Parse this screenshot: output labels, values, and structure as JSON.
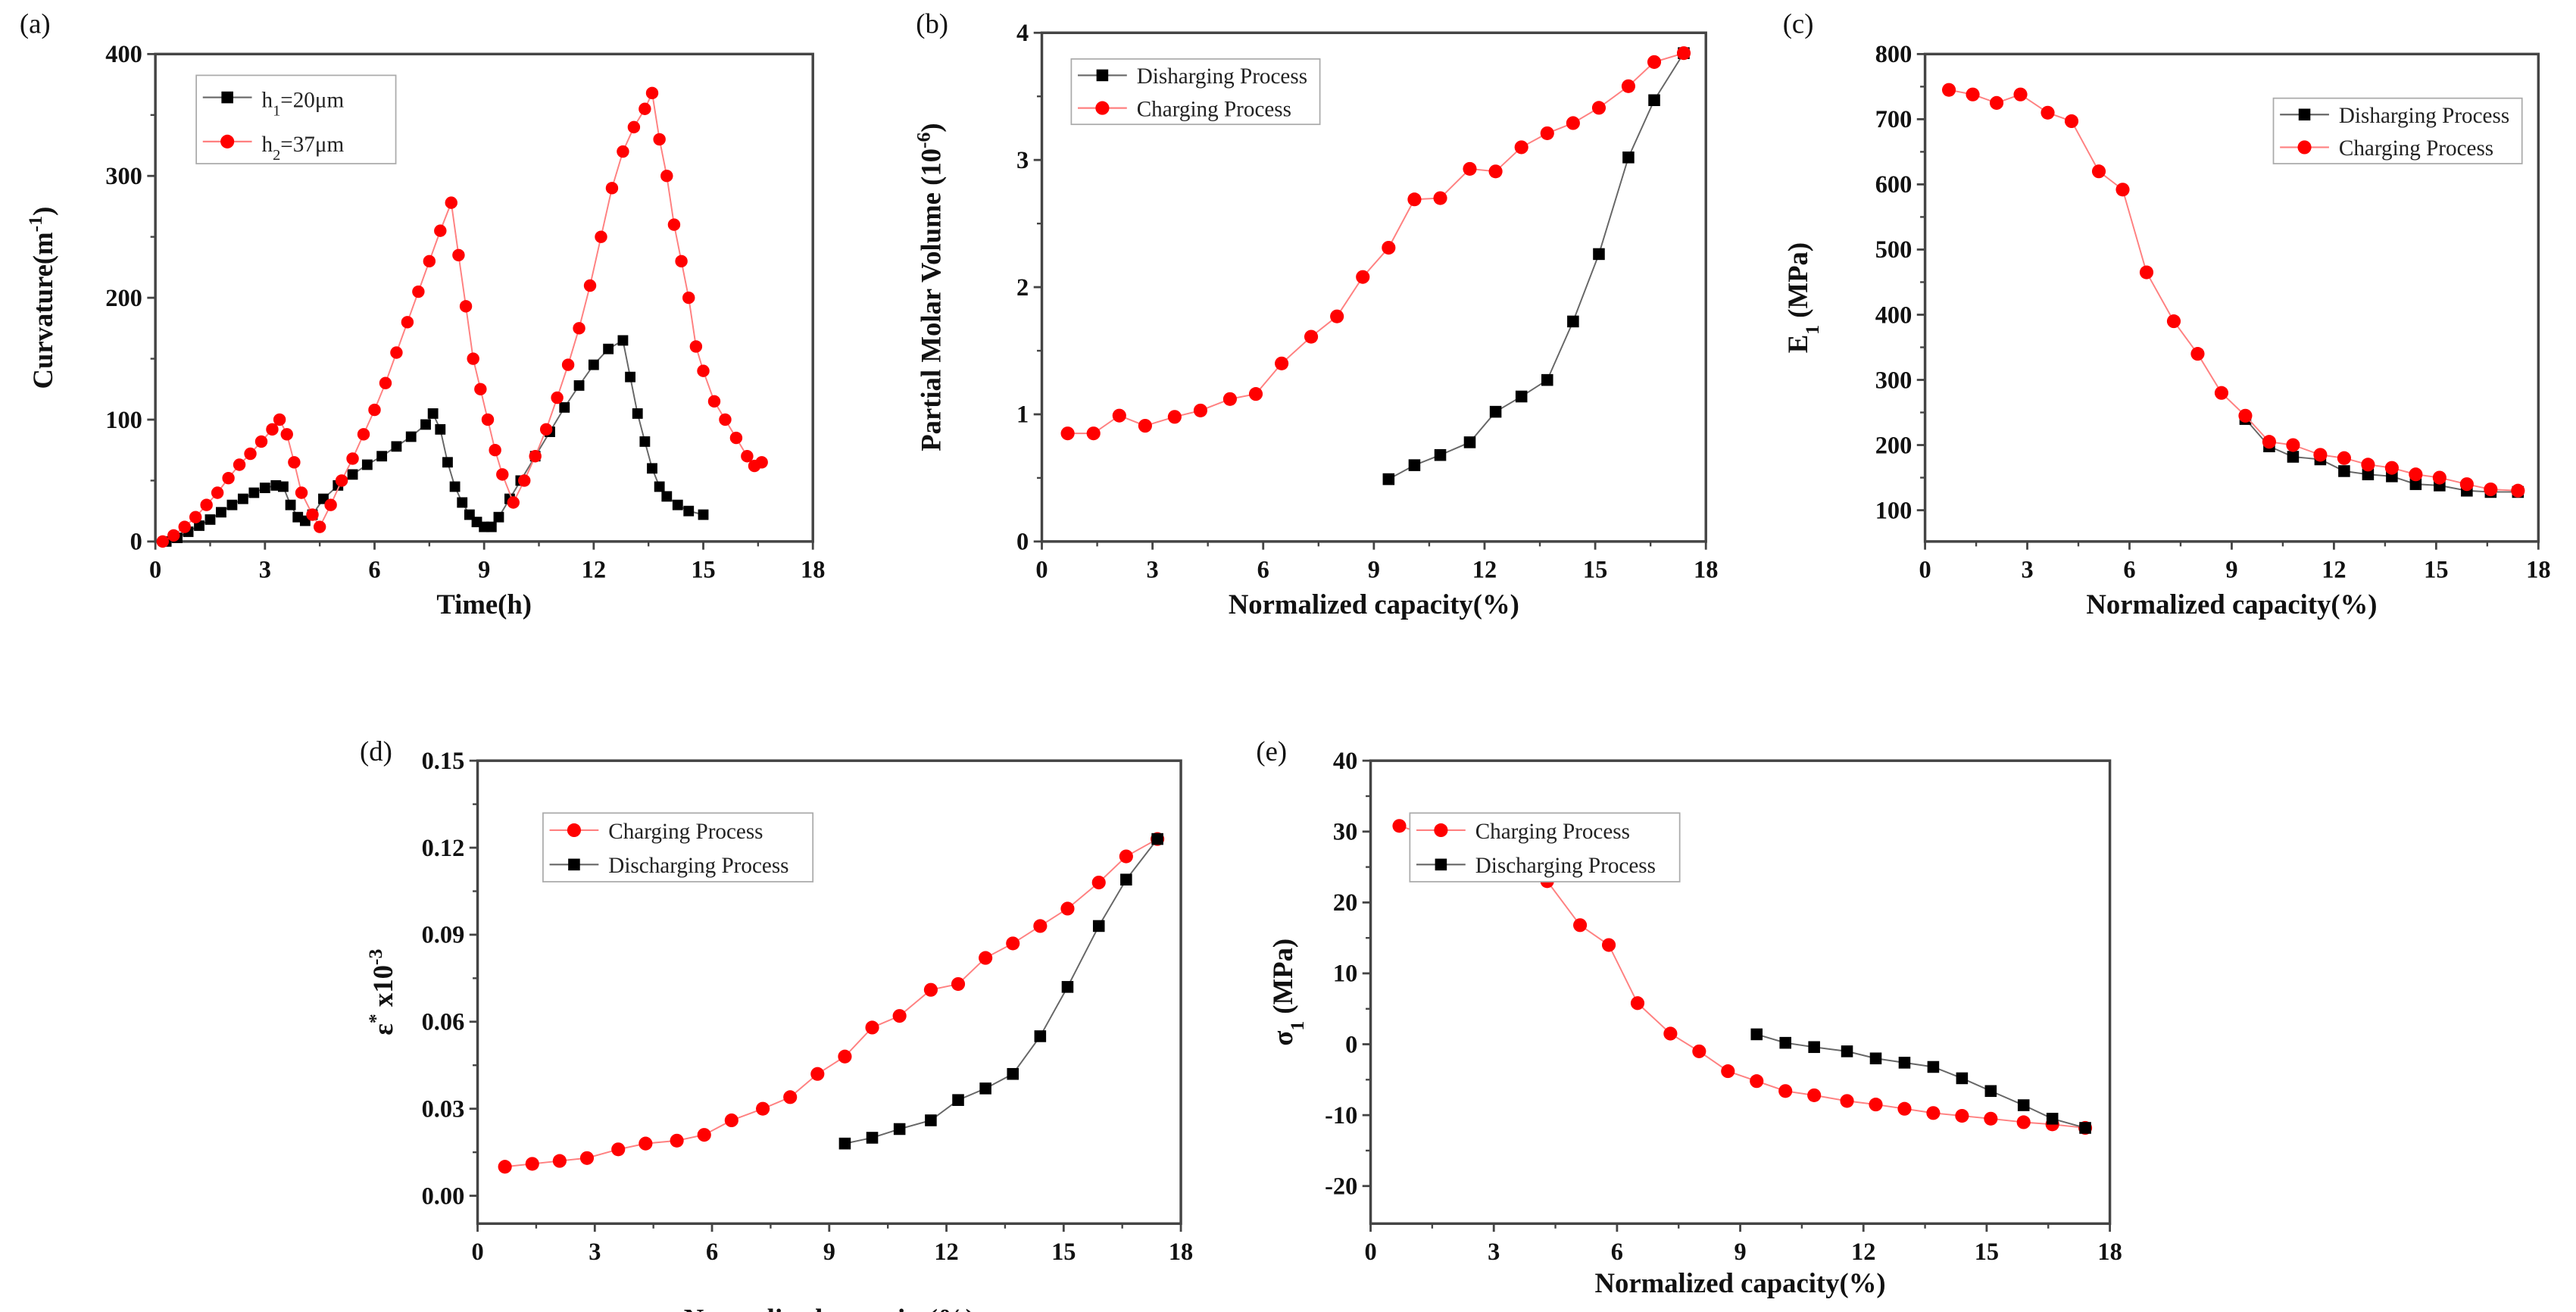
{
  "chart_data": [
    {
      "id": "a",
      "type": "scatter",
      "panel_label": "(a)",
      "xlabel": "Time(h)",
      "ylabel": "Curvature(m",
      "ylabel_sup": "-1",
      "ylabel_end": ")",
      "xlim": [
        0,
        18
      ],
      "ylim": [
        0,
        400
      ],
      "xticks": [
        0,
        3,
        6,
        9,
        12,
        15,
        18
      ],
      "yticks": [
        0,
        100,
        200,
        300,
        400
      ],
      "legend_position": "top-left",
      "series": [
        {
          "name": "h1=20μm",
          "name_base": "h",
          "name_sub": "1",
          "name_rest": "=20μm",
          "marker": "square",
          "color": "#000000",
          "points": [
            [
              0.3,
              0
            ],
            [
              0.6,
              3
            ],
            [
              0.9,
              8
            ],
            [
              1.2,
              13
            ],
            [
              1.5,
              18
            ],
            [
              1.8,
              24
            ],
            [
              2.1,
              30
            ],
            [
              2.4,
              35
            ],
            [
              2.7,
              40
            ],
            [
              3.0,
              44
            ],
            [
              3.3,
              46
            ],
            [
              3.5,
              45
            ],
            [
              3.7,
              30
            ],
            [
              3.9,
              20
            ],
            [
              4.1,
              17
            ],
            [
              4.3,
              22
            ],
            [
              4.6,
              35
            ],
            [
              5.0,
              46
            ],
            [
              5.4,
              55
            ],
            [
              5.8,
              63
            ],
            [
              6.2,
              70
            ],
            [
              6.6,
              78
            ],
            [
              7.0,
              86
            ],
            [
              7.4,
              96
            ],
            [
              7.6,
              105
            ],
            [
              7.8,
              92
            ],
            [
              8.0,
              65
            ],
            [
              8.2,
              45
            ],
            [
              8.4,
              32
            ],
            [
              8.6,
              22
            ],
            [
              8.8,
              16
            ],
            [
              9.0,
              12
            ],
            [
              9.2,
              12
            ],
            [
              9.4,
              20
            ],
            [
              9.7,
              35
            ],
            [
              10.0,
              50
            ],
            [
              10.4,
              70
            ],
            [
              10.8,
              90
            ],
            [
              11.2,
              110
            ],
            [
              11.6,
              128
            ],
            [
              12.0,
              145
            ],
            [
              12.4,
              158
            ],
            [
              12.8,
              165
            ],
            [
              13.0,
              135
            ],
            [
              13.2,
              105
            ],
            [
              13.4,
              82
            ],
            [
              13.6,
              60
            ],
            [
              13.8,
              45
            ],
            [
              14.0,
              37
            ],
            [
              14.3,
              30
            ],
            [
              14.6,
              25
            ],
            [
              15.0,
              22
            ]
          ]
        },
        {
          "name": "h2=37μm",
          "name_base": "h",
          "name_sub": "2",
          "name_rest": "=37μm",
          "marker": "circle",
          "color": "#ff0000",
          "points": [
            [
              0.2,
              0
            ],
            [
              0.5,
              5
            ],
            [
              0.8,
              12
            ],
            [
              1.1,
              20
            ],
            [
              1.4,
              30
            ],
            [
              1.7,
              40
            ],
            [
              2.0,
              52
            ],
            [
              2.3,
              63
            ],
            [
              2.6,
              72
            ],
            [
              2.9,
              82
            ],
            [
              3.2,
              92
            ],
            [
              3.4,
              100
            ],
            [
              3.6,
              88
            ],
            [
              3.8,
              65
            ],
            [
              4.0,
              40
            ],
            [
              4.3,
              22
            ],
            [
              4.5,
              12
            ],
            [
              4.8,
              30
            ],
            [
              5.1,
              50
            ],
            [
              5.4,
              68
            ],
            [
              5.7,
              88
            ],
            [
              6.0,
              108
            ],
            [
              6.3,
              130
            ],
            [
              6.6,
              155
            ],
            [
              6.9,
              180
            ],
            [
              7.2,
              205
            ],
            [
              7.5,
              230
            ],
            [
              7.8,
              255
            ],
            [
              8.1,
              278
            ],
            [
              8.3,
              235
            ],
            [
              8.5,
              193
            ],
            [
              8.7,
              150
            ],
            [
              8.9,
              125
            ],
            [
              9.1,
              100
            ],
            [
              9.3,
              75
            ],
            [
              9.5,
              55
            ],
            [
              9.8,
              32
            ],
            [
              10.1,
              50
            ],
            [
              10.4,
              70
            ],
            [
              10.7,
              92
            ],
            [
              11.0,
              118
            ],
            [
              11.3,
              145
            ],
            [
              11.6,
              175
            ],
            [
              11.9,
              210
            ],
            [
              12.2,
              250
            ],
            [
              12.5,
              290
            ],
            [
              12.8,
              320
            ],
            [
              13.1,
              340
            ],
            [
              13.4,
              355
            ],
            [
              13.6,
              368
            ],
            [
              13.8,
              330
            ],
            [
              14.0,
              300
            ],
            [
              14.2,
              260
            ],
            [
              14.4,
              230
            ],
            [
              14.6,
              200
            ],
            [
              14.8,
              160
            ],
            [
              15.0,
              140
            ],
            [
              15.3,
              115
            ],
            [
              15.6,
              100
            ],
            [
              15.9,
              85
            ],
            [
              16.2,
              70
            ],
            [
              16.4,
              62
            ],
            [
              16.6,
              65
            ]
          ]
        }
      ]
    },
    {
      "id": "b",
      "type": "line",
      "panel_label": "(b)",
      "xlabel": "Normalized capacity(%)",
      "ylabel": "Partial Molar Volume (10",
      "ylabel_sup": "-6",
      "ylabel_end": ")",
      "xlim": [
        0,
        18
      ],
      "ylim": [
        0,
        4
      ],
      "xticks": [
        0,
        3,
        6,
        9,
        12,
        15,
        18
      ],
      "yticks": [
        0,
        1,
        2,
        3,
        4
      ],
      "legend_position": "top-left",
      "series": [
        {
          "name": "Disharging Process",
          "marker": "square",
          "color": "#000000",
          "x": [
            9.4,
            10.1,
            10.8,
            11.6,
            12.3,
            13.0,
            13.7,
            14.4,
            15.1,
            15.9,
            16.6,
            17.4
          ],
          "y": [
            0.49,
            0.6,
            0.68,
            0.78,
            1.02,
            1.14,
            1.27,
            1.73,
            2.26,
            3.02,
            3.47,
            3.84
          ]
        },
        {
          "name": "Charging Process",
          "marker": "circle",
          "color": "#ff0000",
          "x": [
            0.7,
            1.4,
            2.1,
            2.8,
            3.6,
            4.3,
            5.1,
            5.8,
            6.5,
            7.3,
            8.0,
            8.7,
            9.4,
            10.1,
            10.8,
            11.6,
            12.3,
            13.0,
            13.7,
            14.4,
            15.1,
            15.9,
            16.6,
            17.4
          ],
          "y": [
            0.85,
            0.85,
            0.99,
            0.91,
            0.98,
            1.03,
            1.12,
            1.16,
            1.4,
            1.61,
            1.77,
            2.08,
            2.31,
            2.69,
            2.7,
            2.93,
            2.91,
            3.1,
            3.21,
            3.29,
            3.41,
            3.58,
            3.77,
            3.84
          ]
        }
      ]
    },
    {
      "id": "c",
      "type": "line",
      "panel_label": "(c)",
      "xlabel": "Normalized capacity(%)",
      "ylabel": "E",
      "ylabel_sub": "1",
      "ylabel_end": " (MPa)",
      "xlim": [
        0,
        18
      ],
      "ylim": [
        52,
        800
      ],
      "xticks": [
        0,
        3,
        6,
        9,
        12,
        15,
        18
      ],
      "yticks": [
        100,
        200,
        300,
        400,
        500,
        600,
        700,
        800
      ],
      "legend_position": "top-right",
      "series": [
        {
          "name": "Disharging Process",
          "marker": "square",
          "color": "#000000",
          "x": [
            9.4,
            10.1,
            10.8,
            11.6,
            12.3,
            13.0,
            13.7,
            14.4,
            15.1,
            15.9,
            16.6,
            17.4
          ],
          "y": [
            240,
            198,
            182,
            178,
            160,
            155,
            152,
            140,
            138,
            130,
            128,
            128
          ]
        },
        {
          "name": "Charging Process",
          "marker": "circle",
          "color": "#ff0000",
          "x": [
            0.7,
            1.4,
            2.1,
            2.8,
            3.6,
            4.3,
            5.1,
            5.8,
            6.5,
            7.3,
            8.0,
            8.7,
            9.4,
            10.1,
            10.8,
            11.6,
            12.3,
            13.0,
            13.7,
            14.4,
            15.1,
            15.9,
            16.6,
            17.4
          ],
          "y": [
            745,
            738,
            725,
            738,
            710,
            697,
            620,
            592,
            465,
            390,
            340,
            280,
            245,
            205,
            200,
            185,
            180,
            170,
            165,
            155,
            150,
            140,
            132,
            130
          ]
        }
      ]
    },
    {
      "id": "d",
      "type": "line",
      "panel_label": "(d)",
      "xlabel": "Normalized capacity(%)",
      "ylabel": "ε",
      "ylabel_sup": "*",
      "ylabel_mid": " x10",
      "ylabel_sup2": "-3",
      "xlim": [
        0,
        18
      ],
      "ylim": [
        -0.0096,
        0.15
      ],
      "xticks": [
        0,
        3,
        6,
        9,
        12,
        15,
        18
      ],
      "yticks": [
        0.0,
        0.03,
        0.06,
        0.09,
        0.12,
        0.15
      ],
      "ytick_labels": [
        "0.00",
        "0.03",
        "0.06",
        "0.09",
        "0.12",
        "0.15"
      ],
      "legend_position": "top-left",
      "series": [
        {
          "name": "Charging Process",
          "marker": "circle",
          "color": "#ff0000",
          "x": [
            0.7,
            1.4,
            2.1,
            2.8,
            3.6,
            4.3,
            5.1,
            5.8,
            6.5,
            7.3,
            8.0,
            8.7,
            9.4,
            10.1,
            10.8,
            11.6,
            12.3,
            13.0,
            13.7,
            14.4,
            15.1,
            15.9,
            16.6,
            17.4
          ],
          "y": [
            0.01,
            0.011,
            0.012,
            0.013,
            0.016,
            0.018,
            0.019,
            0.021,
            0.026,
            0.03,
            0.034,
            0.042,
            0.048,
            0.058,
            0.062,
            0.071,
            0.073,
            0.082,
            0.087,
            0.093,
            0.099,
            0.108,
            0.117,
            0.123
          ]
        },
        {
          "name": "Discharging Process",
          "marker": "square",
          "color": "#000000",
          "x": [
            9.4,
            10.1,
            10.8,
            11.6,
            12.3,
            13.0,
            13.7,
            14.4,
            15.1,
            15.9,
            16.6,
            17.4
          ],
          "y": [
            0.018,
            0.02,
            0.023,
            0.026,
            0.033,
            0.037,
            0.042,
            0.055,
            0.072,
            0.093,
            0.109,
            0.123
          ]
        }
      ]
    },
    {
      "id": "e",
      "type": "line",
      "panel_label": "(e)",
      "xlabel": "Normalized capacity(%)",
      "ylabel": "σ",
      "ylabel_sub": "1",
      "ylabel_end": " (MPa)",
      "xlim": [
        0,
        18
      ],
      "ylim": [
        -25.3,
        40
      ],
      "xticks": [
        0,
        3,
        6,
        9,
        12,
        15,
        18
      ],
      "yticks": [
        -20,
        -10,
        0,
        10,
        20,
        30,
        40
      ],
      "legend_position": "top-left",
      "series": [
        {
          "name": "Charging Process",
          "marker": "circle",
          "color": "#ff0000",
          "x": [
            0.7,
            1.4,
            2.1,
            2.8,
            3.6,
            4.3,
            5.1,
            5.8,
            6.5,
            7.3,
            8.0,
            8.7,
            9.4,
            10.1,
            10.8,
            11.6,
            12.3,
            13.0,
            13.7,
            14.4,
            15.1,
            15.9,
            16.6,
            17.4
          ],
          "y": [
            30.8,
            29.5,
            27.5,
            28.2,
            25,
            23,
            16.8,
            14,
            5.8,
            1.5,
            -1,
            -3.8,
            -5.2,
            -6.6,
            -7.2,
            -8,
            -8.5,
            -9.1,
            -9.7,
            -10.1,
            -10.5,
            -11,
            -11.3,
            -11.8
          ]
        },
        {
          "name": "Discharging Process",
          "marker": "square",
          "color": "#000000",
          "x": [
            9.4,
            10.1,
            10.8,
            11.6,
            12.3,
            13.0,
            13.7,
            14.4,
            15.1,
            15.9,
            16.6,
            17.4
          ],
          "y": [
            1.4,
            0.2,
            -0.4,
            -1,
            -2,
            -2.6,
            -3.2,
            -4.8,
            -6.6,
            -8.6,
            -10.5,
            -11.8
          ]
        }
      ]
    }
  ]
}
